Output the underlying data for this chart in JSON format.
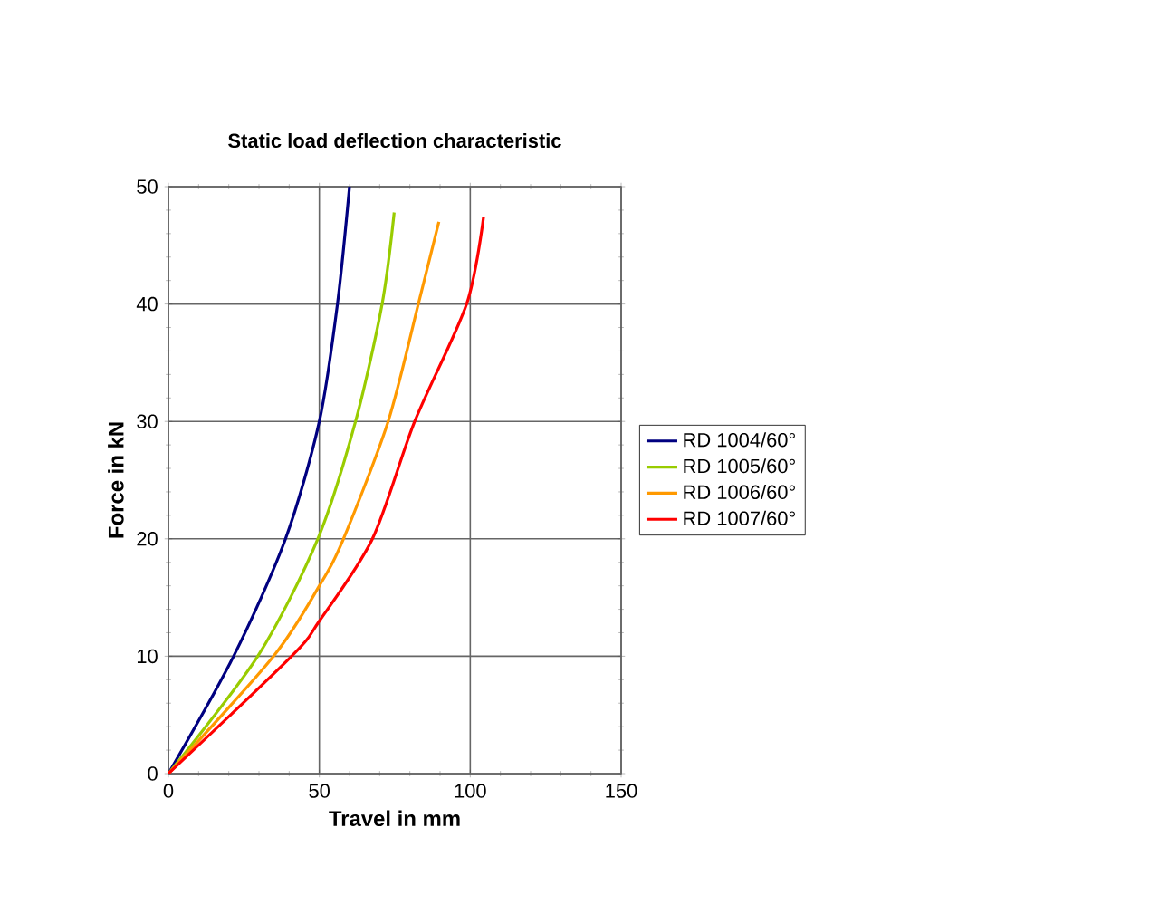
{
  "chart_data": {
    "type": "line",
    "title": "Static load deflection characteristic",
    "xlabel": "Travel in mm",
    "ylabel": "Force in kN",
    "xlim": [
      0,
      150
    ],
    "ylim": [
      0,
      50
    ],
    "xticks": [
      0,
      50,
      100,
      150
    ],
    "yticks": [
      0,
      10,
      20,
      30,
      40,
      50
    ],
    "grid": true,
    "legend": "right",
    "marker": "none",
    "line_style": "solid",
    "series": [
      {
        "name": "RD 1004/60°",
        "color": "#000080",
        "x": [
          0,
          21.6,
          38.8,
          50,
          56,
          60
        ],
        "values": [
          0,
          10,
          20,
          30,
          40,
          50
        ]
      },
      {
        "name": "RD 1005/60°",
        "color": "#99cc00",
        "x": [
          0,
          29.6,
          49.5,
          62,
          70.8,
          74.8
        ],
        "values": [
          0,
          10,
          20,
          30,
          40,
          47.8
        ]
      },
      {
        "name": "RD 1006/60°",
        "color": "#ff9900",
        "x": [
          0,
          34.8,
          50,
          58,
          72.8,
          82.8,
          89.6
        ],
        "values": [
          0,
          10,
          16,
          20,
          30,
          40,
          47
        ]
      },
      {
        "name": "RD 1007/60°",
        "color": "#ff0000",
        "x": [
          0,
          40.8,
          50,
          67.6,
          81.6,
          98.8,
          104.4
        ],
        "values": [
          0,
          10,
          13,
          20,
          30,
          40,
          47.4
        ]
      }
    ]
  }
}
